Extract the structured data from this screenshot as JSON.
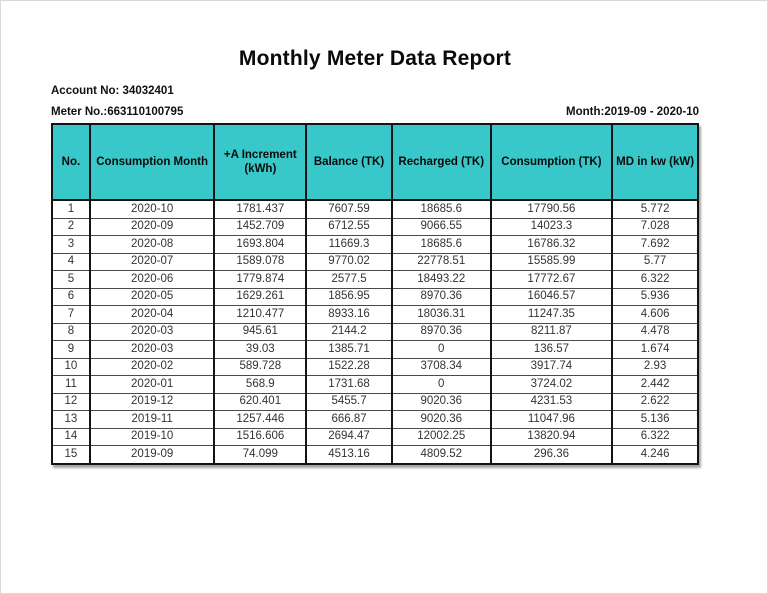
{
  "page": {
    "title": "Monthly Meter Data Report",
    "account_line": "Account No: 34032401",
    "meter_line": "Meter No.:663110100795",
    "month_line": "Month:2019-09 - 2020-10"
  },
  "colors": {
    "header_bg": "#38c8ca",
    "table_border": "#141414",
    "data_text": "#333333"
  },
  "table": {
    "columns": [
      "No.",
      "Consumption Month",
      "+A Increment (kWh)",
      "Balance (TK)",
      "Recharged (TK)",
      "Consumption (TK)",
      "MD in kw (kW)"
    ],
    "rows": [
      [
        "1",
        "2020-10",
        "1781.437",
        "7607.59",
        "18685.6",
        "17790.56",
        "5.772"
      ],
      [
        "2",
        "2020-09",
        "1452.709",
        "6712.55",
        "9066.55",
        "14023.3",
        "7.028"
      ],
      [
        "3",
        "2020-08",
        "1693.804",
        "11669.3",
        "18685.6",
        "16786.32",
        "7.692"
      ],
      [
        "4",
        "2020-07",
        "1589.078",
        "9770.02",
        "22778.51",
        "15585.99",
        "5.77"
      ],
      [
        "5",
        "2020-06",
        "1779.874",
        "2577.5",
        "18493.22",
        "17772.67",
        "6.322"
      ],
      [
        "6",
        "2020-05",
        "1629.261",
        "1856.95",
        "8970.36",
        "16046.57",
        "5.936"
      ],
      [
        "7",
        "2020-04",
        "1210.477",
        "8933.16",
        "18036.31",
        "11247.35",
        "4.606"
      ],
      [
        "8",
        "2020-03",
        "945.61",
        "2144.2",
        "8970.36",
        "8211.87",
        "4.478"
      ],
      [
        "9",
        "2020-03",
        "39.03",
        "1385.71",
        "0",
        "136.57",
        "1.674"
      ],
      [
        "10",
        "2020-02",
        "589.728",
        "1522.28",
        "3708.34",
        "3917.74",
        "2.93"
      ],
      [
        "11",
        "2020-01",
        "568.9",
        "1731.68",
        "0",
        "3724.02",
        "2.442"
      ],
      [
        "12",
        "2019-12",
        "620.401",
        "5455.7",
        "9020.36",
        "4231.53",
        "2.622"
      ],
      [
        "13",
        "2019-11",
        "1257.446",
        "666.87",
        "9020.36",
        "11047.96",
        "5.136"
      ],
      [
        "14",
        "2019-10",
        "1516.606",
        "2694.47",
        "12002.25",
        "13820.94",
        "6.322"
      ],
      [
        "15",
        "2019-09",
        "74.099",
        "4513.16",
        "4809.52",
        "296.36",
        "4.246"
      ]
    ]
  }
}
